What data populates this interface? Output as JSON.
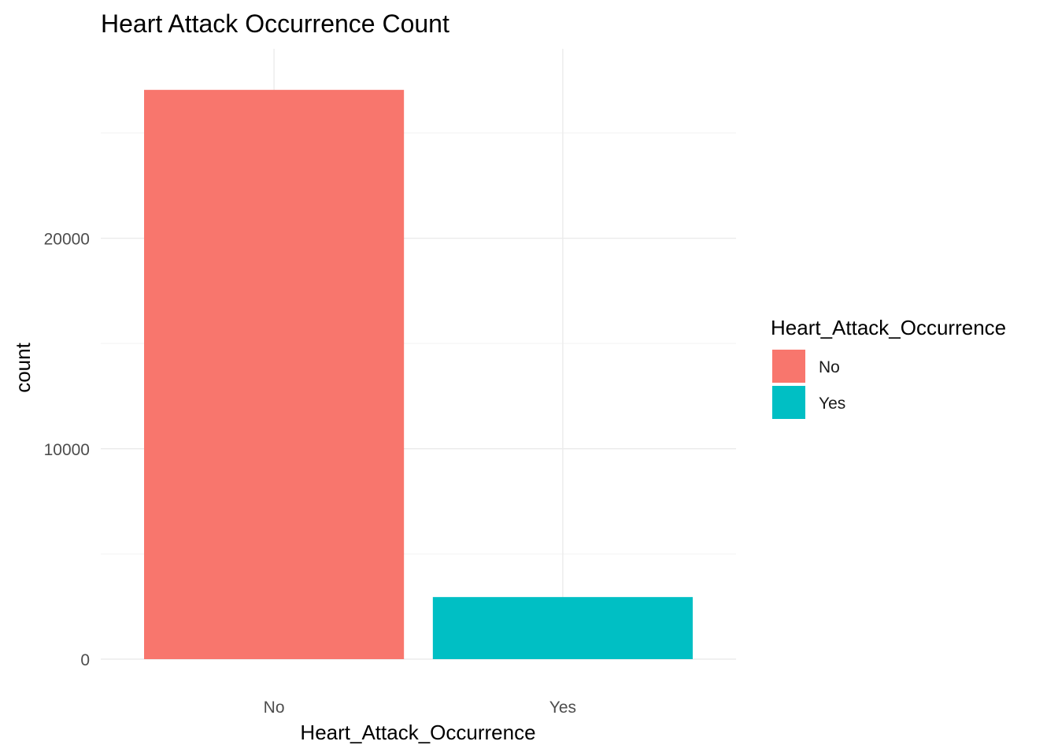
{
  "chart_data": {
    "type": "bar",
    "title": "Heart Attack Occurrence Count",
    "xlabel": "Heart_Attack_Occurrence",
    "ylabel": "count",
    "categories": [
      "No",
      "Yes"
    ],
    "values": [
      27050,
      2950
    ],
    "colors": [
      "#F8766D",
      "#00BFC4"
    ],
    "ylim": [
      0,
      29000
    ],
    "yticks": [
      0,
      10000,
      20000
    ],
    "yticks_minor": [
      5000,
      15000,
      25000
    ],
    "grid": true,
    "legend": {
      "title": "Heart_Attack_Occurrence",
      "placement": "right",
      "entries": [
        "No",
        "Yes"
      ]
    }
  }
}
